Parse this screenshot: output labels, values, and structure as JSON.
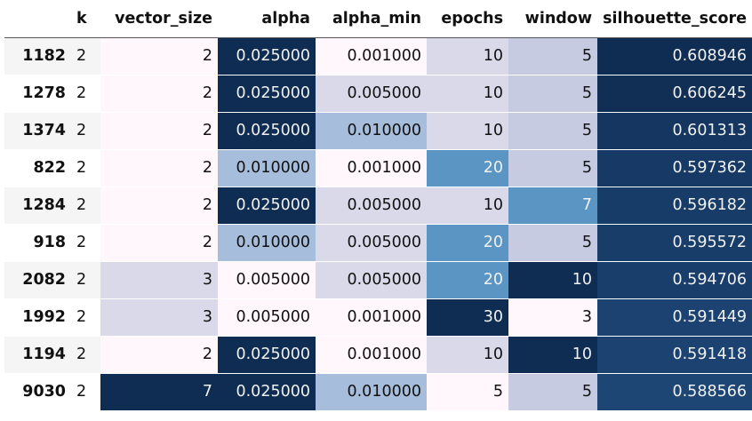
{
  "columns": [
    "k",
    "vector_size",
    "alpha",
    "alpha_min",
    "epochs",
    "window",
    "silhouette_score"
  ],
  "rows": [
    {
      "index": "1182",
      "k": "2",
      "vector_size": "2",
      "alpha": "0.025000",
      "alpha_min": "0.001000",
      "epochs": "10",
      "window": "5",
      "silhouette_score": "0.608946"
    },
    {
      "index": "1278",
      "k": "2",
      "vector_size": "2",
      "alpha": "0.025000",
      "alpha_min": "0.005000",
      "epochs": "10",
      "window": "5",
      "silhouette_score": "0.606245"
    },
    {
      "index": "1374",
      "k": "2",
      "vector_size": "2",
      "alpha": "0.025000",
      "alpha_min": "0.010000",
      "epochs": "10",
      "window": "5",
      "silhouette_score": "0.601313"
    },
    {
      "index": "822",
      "k": "2",
      "vector_size": "2",
      "alpha": "0.010000",
      "alpha_min": "0.001000",
      "epochs": "20",
      "window": "5",
      "silhouette_score": "0.597362"
    },
    {
      "index": "1284",
      "k": "2",
      "vector_size": "2",
      "alpha": "0.025000",
      "alpha_min": "0.005000",
      "epochs": "10",
      "window": "7",
      "silhouette_score": "0.596182"
    },
    {
      "index": "918",
      "k": "2",
      "vector_size": "2",
      "alpha": "0.010000",
      "alpha_min": "0.005000",
      "epochs": "20",
      "window": "5",
      "silhouette_score": "0.595572"
    },
    {
      "index": "2082",
      "k": "2",
      "vector_size": "3",
      "alpha": "0.005000",
      "alpha_min": "0.005000",
      "epochs": "20",
      "window": "10",
      "silhouette_score": "0.594706"
    },
    {
      "index": "1992",
      "k": "2",
      "vector_size": "3",
      "alpha": "0.005000",
      "alpha_min": "0.001000",
      "epochs": "30",
      "window": "3",
      "silhouette_score": "0.591449"
    },
    {
      "index": "1194",
      "k": "2",
      "vector_size": "2",
      "alpha": "0.025000",
      "alpha_min": "0.001000",
      "epochs": "10",
      "window": "10",
      "silhouette_score": "0.591418"
    },
    {
      "index": "9030",
      "k": "2",
      "vector_size": "7",
      "alpha": "0.025000",
      "alpha_min": "0.010000",
      "epochs": "5",
      "window": "5",
      "silhouette_score": "0.588566"
    }
  ],
  "cell_colors": {
    "vector_size": {
      "2": "#fff7fb",
      "3": "#d9d9ea",
      "7": "#0f2d52"
    },
    "alpha": {
      "0.025000": "#0f2d52",
      "0.010000": "#a6bddb",
      "0.005000": "#fff7fb"
    },
    "alpha_min": {
      "0.001000": "#fff7fb",
      "0.005000": "#d9d9ea",
      "0.010000": "#a6bddb"
    },
    "epochs": {
      "5": "#fff7fb",
      "10": "#d9d9ea",
      "20": "#5a95c3",
      "30": "#0f2d52"
    },
    "window": {
      "3": "#fff7fb",
      "5": "#c6cbe2",
      "7": "#5a95c3",
      "10": "#0f2d52"
    },
    "silhouette_score": {
      "0.608946": "#0f2d52",
      "0.606245": "#112f55",
      "0.601313": "#143660",
      "0.597362": "#163a65",
      "0.596182": "#173c68",
      "0.595572": "#183d69",
      "0.594706": "#193e6b",
      "0.591449": "#1b4270",
      "0.591418": "#1b4270",
      "0.588566": "#1d4674"
    }
  },
  "light_text_colors": [
    "#0f2d52",
    "#112f55",
    "#143660",
    "#163a65",
    "#173c68",
    "#183d69",
    "#193e6b",
    "#1b4270",
    "#1d4674",
    "#5a95c3"
  ]
}
